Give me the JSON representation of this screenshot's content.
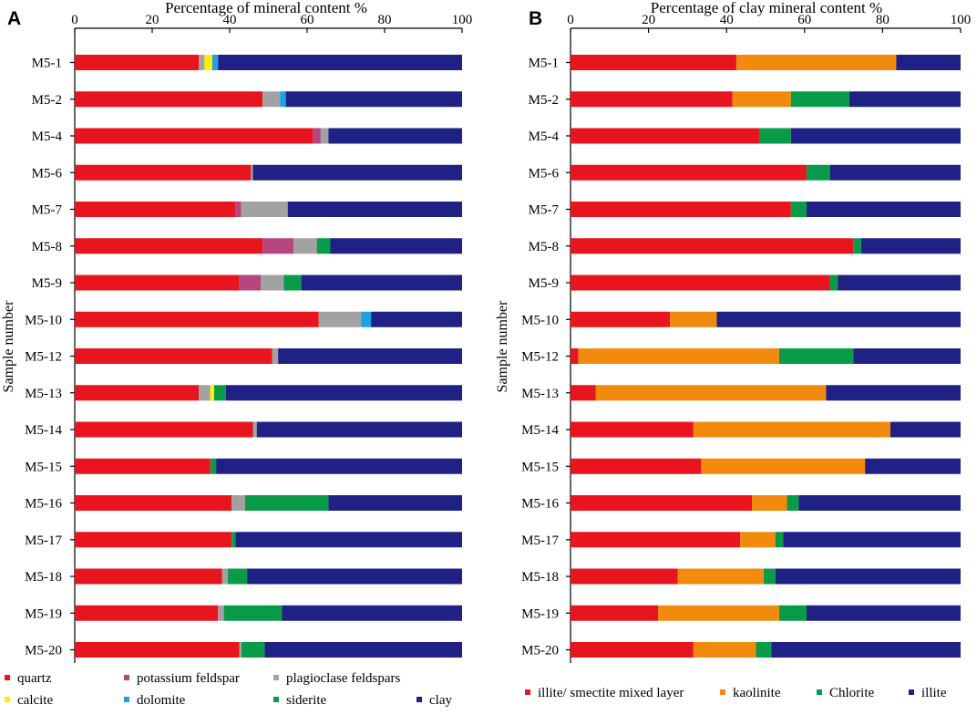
{
  "chart_data": [
    {
      "type": "bar",
      "orientation": "horizontal",
      "stacked": true,
      "panel_label": "A",
      "title": "Percentage of  mineral content  %",
      "xlabel": "",
      "ylabel": "Sample number",
      "xlim": [
        0,
        100
      ],
      "xticks": [
        "0",
        "20",
        "40",
        "60",
        "80",
        "100"
      ],
      "grid": false,
      "legend_position": "bottom",
      "categories": [
        "M5-1",
        "M5-2",
        "M5-4",
        "M5-6",
        "M5-7",
        "M5-8",
        "M5-9",
        "M5-10",
        "M5-12",
        "M5-13",
        "M5-14",
        "M5-15",
        "M5-16",
        "M5-17",
        "M5-18",
        "M5-19",
        "M5-20"
      ],
      "series": [
        {
          "name": "quartz",
          "color": "#e8141e",
          "values": [
            32,
            48.5,
            61.5,
            45.5,
            41.5,
            48.5,
            42.5,
            63,
            51,
            32,
            46,
            35,
            40.5,
            40.5,
            38,
            37,
            42.5
          ]
        },
        {
          "name": "potassium  feldspar",
          "color": "#b5467f",
          "values": [
            0,
            0,
            2,
            0,
            1.5,
            8,
            5.5,
            0,
            0,
            0,
            0,
            0,
            0,
            0,
            0,
            0,
            0
          ]
        },
        {
          "name": "plagioclase  feldspars",
          "color": "#a2a2a2",
          "values": [
            1.5,
            4.5,
            2,
            0.5,
            12,
            6,
            6,
            11,
            1.5,
            3,
            1,
            0,
            3.5,
            0,
            1.5,
            1.5,
            0.5
          ]
        },
        {
          "name": "calcite",
          "color": "#ffee00",
          "values": [
            2,
            0,
            0,
            0,
            0,
            0,
            0,
            0,
            0,
            1,
            0,
            0,
            0,
            0,
            0,
            0,
            0
          ]
        },
        {
          "name": "dolomite",
          "color": "#1ea0e6",
          "values": [
            1.5,
            1.5,
            0,
            0,
            0,
            0,
            0,
            2.5,
            0,
            0,
            0,
            0,
            0,
            0,
            0,
            0,
            0
          ]
        },
        {
          "name": "siderite",
          "color": "#0a9b48",
          "values": [
            0,
            0,
            0,
            0,
            0,
            3.5,
            4.5,
            0,
            0,
            3,
            0,
            1.5,
            21.5,
            1,
            5,
            15,
            6
          ]
        },
        {
          "name": "clay",
          "color": "#1f2185",
          "values": [
            63,
            45.5,
            34.5,
            54,
            45,
            34,
            41.5,
            23.5,
            47.5,
            61,
            53,
            63.5,
            34.5,
            58.5,
            55.5,
            46.5,
            51
          ]
        }
      ]
    },
    {
      "type": "bar",
      "orientation": "horizontal",
      "stacked": true,
      "panel_label": "B",
      "title": "Percentage of clay mineral content  %",
      "xlabel": "",
      "ylabel": "Sample number",
      "xlim": [
        0,
        100
      ],
      "xticks": [
        "0",
        "20",
        "40",
        "60",
        "80",
        "100"
      ],
      "grid": false,
      "legend_position": "bottom",
      "categories": [
        "M5-1",
        "M5-2",
        "M5-4",
        "M5-6",
        "M5-7",
        "M5-8",
        "M5-9",
        "M5-10",
        "M5-12",
        "M5-13",
        "M5-14",
        "M5-15",
        "M5-16",
        "M5-17",
        "M5-18",
        "M5-19",
        "M5-20"
      ],
      "series": [
        {
          "name": "illite/ smectite mixed layer",
          "color": "#e8141e",
          "values": [
            42.5,
            41.5,
            48.5,
            60.5,
            56.5,
            72.5,
            66.5,
            25.5,
            2,
            6.5,
            31.5,
            33.5,
            46.5,
            43.5,
            27.5,
            22.5,
            31.5
          ]
        },
        {
          "name": "kaolinite",
          "color": "#f28a0d",
          "values": [
            41,
            15,
            0,
            0,
            0,
            0,
            0,
            12,
            51.5,
            59,
            50.5,
            42,
            9,
            9,
            22,
            31,
            16
          ]
        },
        {
          "name": "Chlorite",
          "color": "#0a9b48",
          "values": [
            0,
            15,
            8,
            6,
            4,
            2,
            2,
            0,
            19,
            0,
            0,
            0,
            3,
            2,
            3,
            7,
            4
          ]
        },
        {
          "name": "illite",
          "color": "#1f2185",
          "values": [
            16.5,
            28.5,
            43.5,
            33.5,
            39.5,
            25.5,
            31.5,
            62.5,
            27.5,
            34.5,
            18,
            24.5,
            41.5,
            45.5,
            47.5,
            39.5,
            48.5
          ]
        }
      ]
    }
  ]
}
